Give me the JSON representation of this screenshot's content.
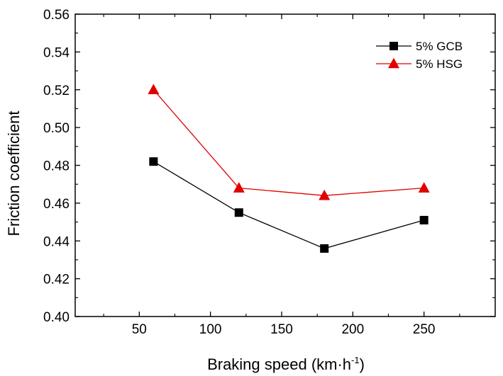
{
  "chart_data": {
    "type": "line",
    "xlabel": "Braking speed (km·h",
    "xlabel_superscript": "-1",
    "xlabel_suffix": ")",
    "ylabel": "Friction coefficient",
    "xlim": [
      5,
      300
    ],
    "ylim": [
      0.4,
      0.56
    ],
    "xticks": [
      50,
      100,
      150,
      200,
      250
    ],
    "xtick_labels": [
      "50",
      "100",
      "150",
      "200",
      "250"
    ],
    "yticks": [
      0.4,
      0.42,
      0.44,
      0.46,
      0.48,
      0.5,
      0.52,
      0.54,
      0.56
    ],
    "ytick_labels": [
      "0.40",
      "0.42",
      "0.44",
      "0.46",
      "0.48",
      "0.50",
      "0.52",
      "0.54",
      "0.56"
    ],
    "grid": false,
    "legend_position": "top-right",
    "series": [
      {
        "name": "5% GCB",
        "color": "#000000",
        "marker": "square",
        "x": [
          60,
          120,
          180,
          250
        ],
        "y": [
          0.482,
          0.455,
          0.436,
          0.451
        ]
      },
      {
        "name": "5% HSG",
        "color": "#e00000",
        "marker": "triangle",
        "x": [
          60,
          120,
          180,
          250
        ],
        "y": [
          0.52,
          0.468,
          0.464,
          0.468
        ]
      }
    ]
  }
}
